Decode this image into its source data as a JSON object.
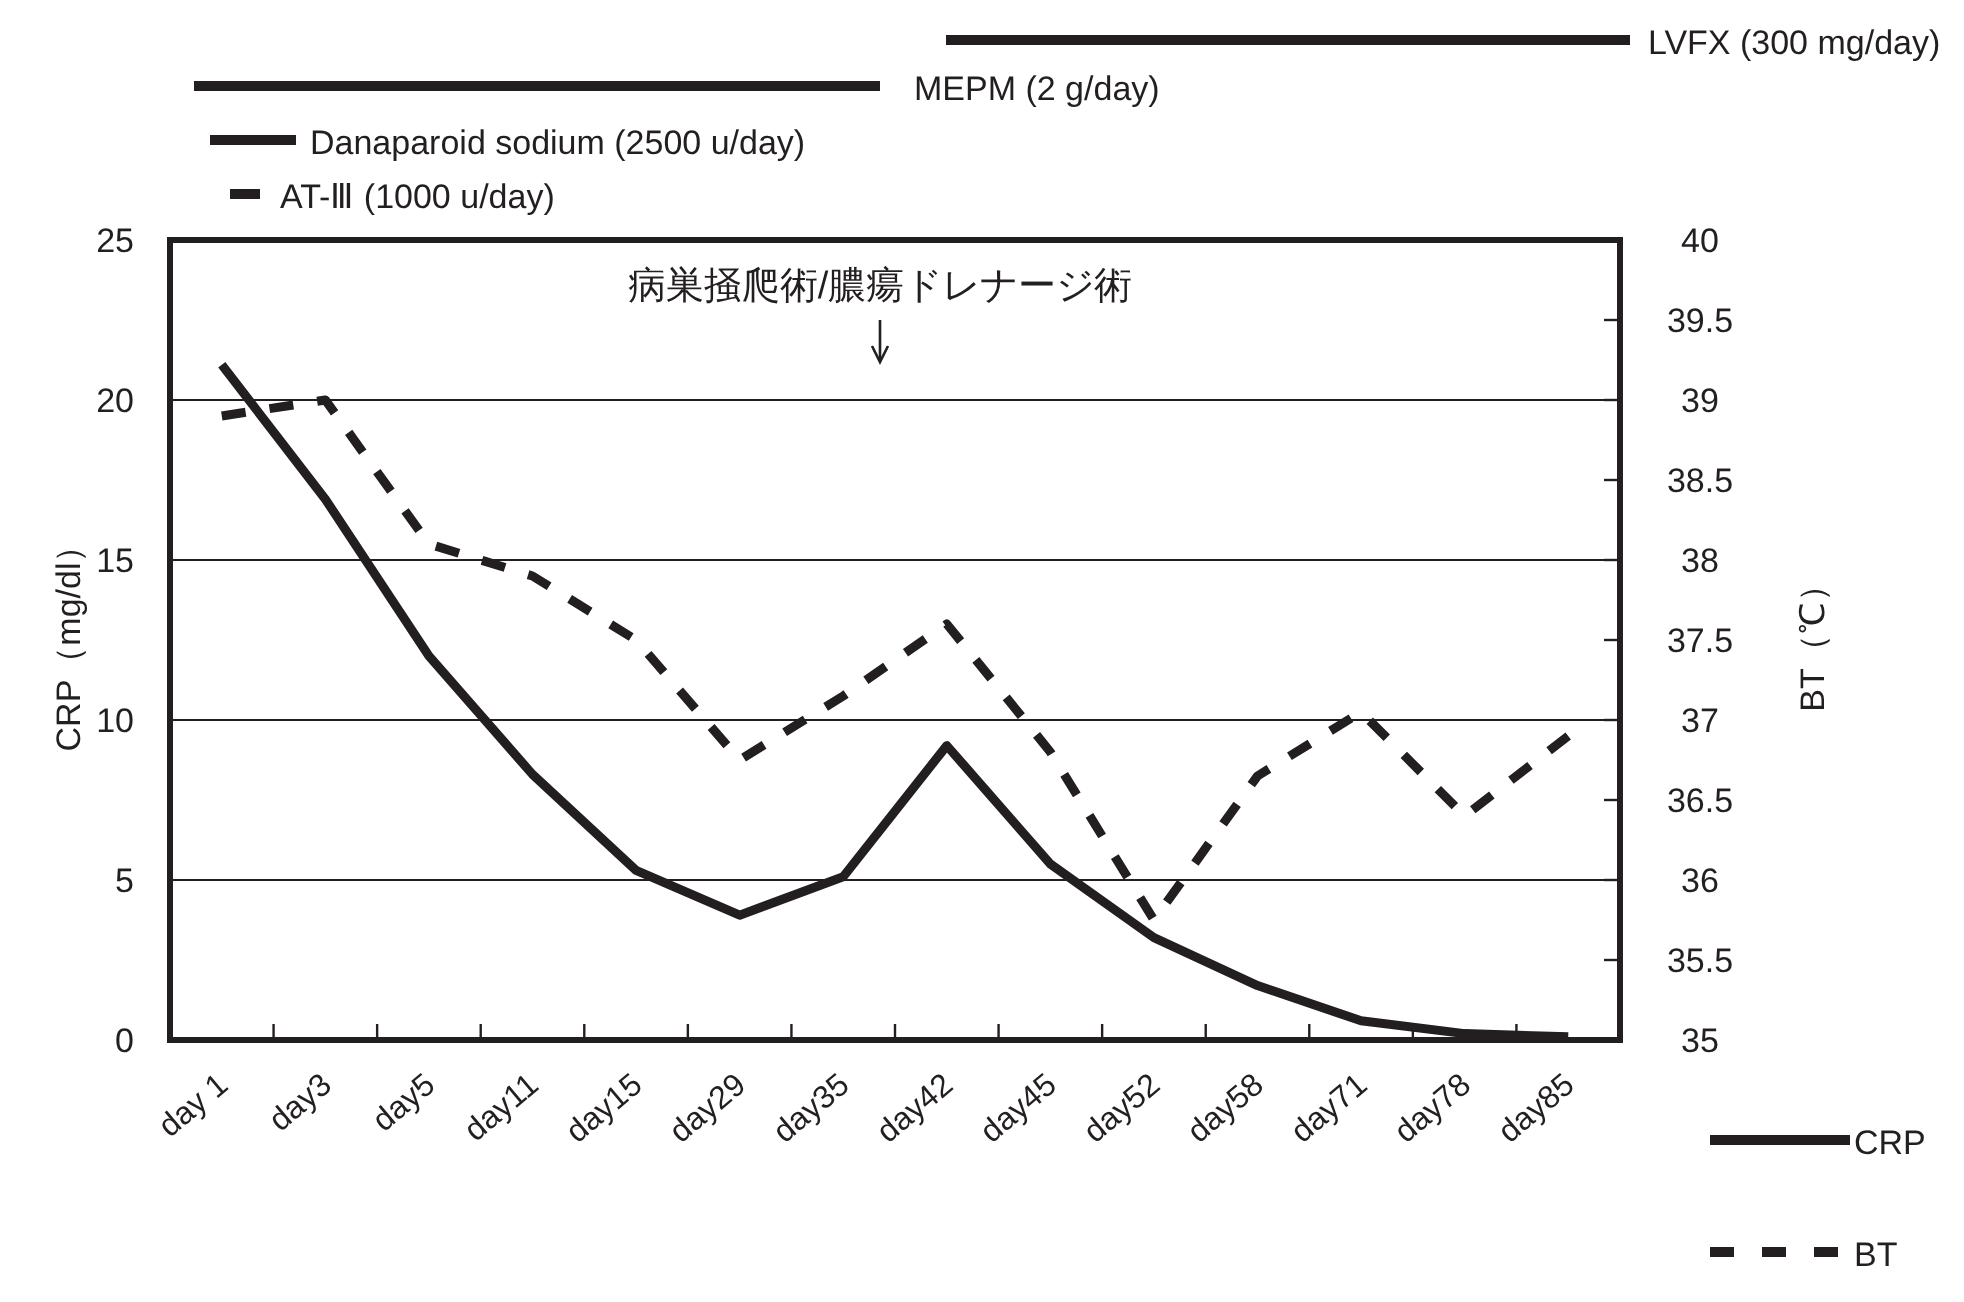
{
  "chart_data": {
    "type": "line",
    "categories": [
      "day 1",
      "day3",
      "day5",
      "day11",
      "day15",
      "day29",
      "day35",
      "day42",
      "day45",
      "day52",
      "day58",
      "day71",
      "day78",
      "day85"
    ],
    "series": [
      {
        "name": "CRP",
        "color": "#231f20",
        "line_style": "solid",
        "values": [
          21.1,
          16.9,
          12.0,
          8.3,
          5.3,
          3.9,
          5.1,
          9.2,
          5.5,
          3.2,
          1.7,
          0.6,
          0.2,
          0.1
        ]
      },
      {
        "name": "BT",
        "color": "#231f20",
        "line_style": "dashed",
        "axis": "y2",
        "values": [
          38.9,
          39.0,
          38.1,
          37.9,
          37.5,
          36.75,
          37.15,
          37.6,
          36.8,
          35.75,
          36.65,
          37.05,
          36.4,
          36.9
        ]
      }
    ],
    "ylabel": "CRP（mg/dl）",
    "y2label": "BT（℃）",
    "ylim": [
      0,
      25
    ],
    "yticks": [
      0,
      5,
      10,
      15,
      20,
      25
    ],
    "y2lim": [
      35,
      40
    ],
    "y2ticks": [
      35,
      35.5,
      36,
      36.5,
      37,
      37.5,
      38,
      38.5,
      39,
      39.5,
      40
    ],
    "grid": "y",
    "legend": "bottom right",
    "annotations": [
      "LVFX (300 mg/day)",
      "MEPM (2 g/day)",
      "Danaparoid sodium (2500 u/day)",
      "AT-Ⅲ (1000 u/day)",
      "病巣掻爬術/膿瘍ドレナージ術"
    ]
  }
}
